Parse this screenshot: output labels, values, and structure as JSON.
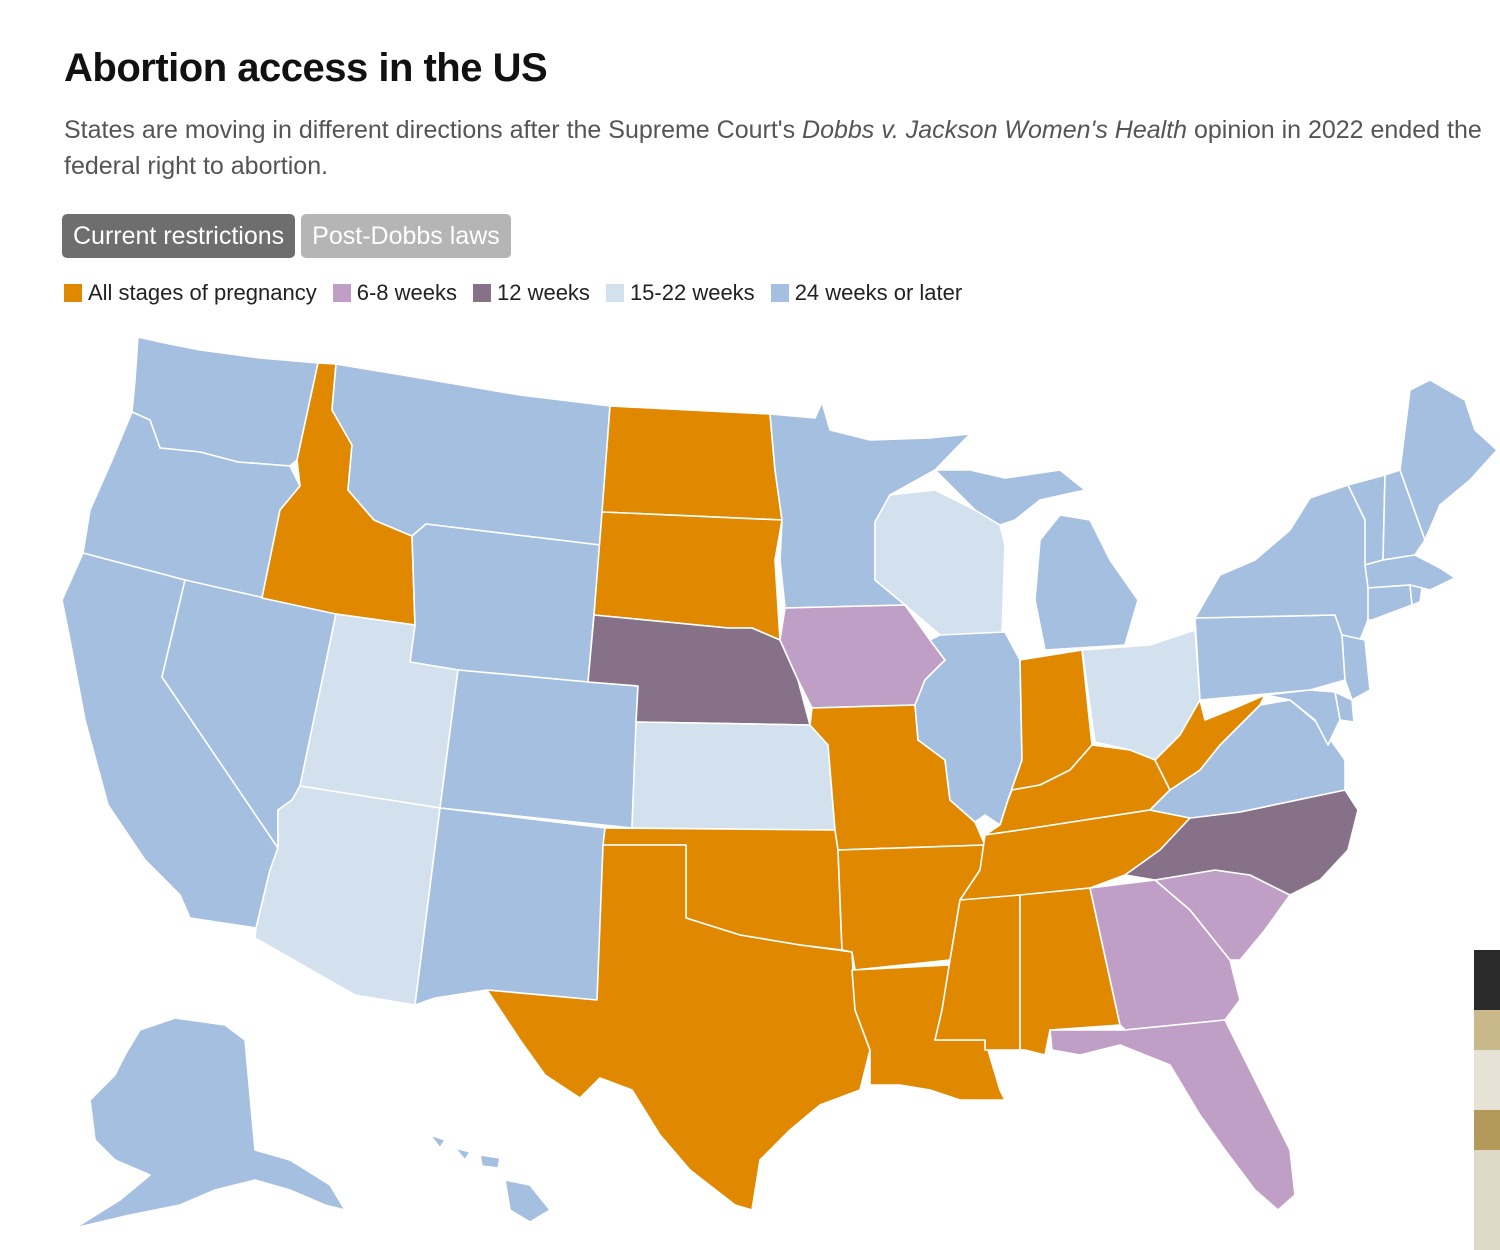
{
  "header": {
    "title": "Abortion access in the US",
    "subtitle_part1": "States are moving in different directions after the Supreme Court's ",
    "subtitle_italic": "Dobbs v. Jackson Women's Health",
    "subtitle_part2": " opinion in 2022 ended the federal right to abortion."
  },
  "tabs": [
    {
      "label": "Current restrictions",
      "active": true
    },
    {
      "label": "Post-Dobbs laws",
      "active": false
    }
  ],
  "legend": [
    {
      "key": "all",
      "label": "All stages of pregnancy",
      "color": "#e08900"
    },
    {
      "key": "w6",
      "label": "6-8 weeks",
      "color": "#c09fc7"
    },
    {
      "key": "w12",
      "label": "12 weeks",
      "color": "#877189"
    },
    {
      "key": "w15",
      "label": "15-22 weeks",
      "color": "#d3e0ee"
    },
    {
      "key": "w24",
      "label": "24 weeks or later",
      "color": "#a4bfdf"
    }
  ],
  "map": {
    "states": [
      {
        "id": "WA",
        "category": "w24"
      },
      {
        "id": "OR",
        "category": "w24"
      },
      {
        "id": "CA",
        "category": "w24"
      },
      {
        "id": "NV",
        "category": "w24"
      },
      {
        "id": "ID",
        "category": "all"
      },
      {
        "id": "MT",
        "category": "w24"
      },
      {
        "id": "WY",
        "category": "w24"
      },
      {
        "id": "UT",
        "category": "w15"
      },
      {
        "id": "AZ",
        "category": "w15"
      },
      {
        "id": "CO",
        "category": "w24"
      },
      {
        "id": "NM",
        "category": "w24"
      },
      {
        "id": "ND",
        "category": "all"
      },
      {
        "id": "SD",
        "category": "all"
      },
      {
        "id": "NE",
        "category": "w12"
      },
      {
        "id": "KS",
        "category": "w15"
      },
      {
        "id": "OK",
        "category": "all"
      },
      {
        "id": "TX",
        "category": "all"
      },
      {
        "id": "MN",
        "category": "w24"
      },
      {
        "id": "IA",
        "category": "w6"
      },
      {
        "id": "MO",
        "category": "all"
      },
      {
        "id": "AR",
        "category": "all"
      },
      {
        "id": "LA",
        "category": "all"
      },
      {
        "id": "WI",
        "category": "w15"
      },
      {
        "id": "IL",
        "category": "w24"
      },
      {
        "id": "MI",
        "category": "w24"
      },
      {
        "id": "IN",
        "category": "all"
      },
      {
        "id": "OH",
        "category": "w15"
      },
      {
        "id": "KY",
        "category": "all"
      },
      {
        "id": "TN",
        "category": "all"
      },
      {
        "id": "MS",
        "category": "all"
      },
      {
        "id": "AL",
        "category": "all"
      },
      {
        "id": "GA",
        "category": "w6"
      },
      {
        "id": "FL",
        "category": "w6"
      },
      {
        "id": "SC",
        "category": "w6"
      },
      {
        "id": "NC",
        "category": "w12"
      },
      {
        "id": "VA",
        "category": "w24"
      },
      {
        "id": "WV",
        "category": "all"
      },
      {
        "id": "PA",
        "category": "w24"
      },
      {
        "id": "NY",
        "category": "w24"
      },
      {
        "id": "NJ",
        "category": "w24"
      },
      {
        "id": "DE",
        "category": "w24"
      },
      {
        "id": "MD",
        "category": "w24"
      },
      {
        "id": "VT",
        "category": "w24"
      },
      {
        "id": "NH",
        "category": "w24"
      },
      {
        "id": "ME",
        "category": "w24"
      },
      {
        "id": "MA",
        "category": "w24"
      },
      {
        "id": "CT",
        "category": "w24"
      },
      {
        "id": "RI",
        "category": "w24"
      },
      {
        "id": "AK",
        "category": "w24"
      },
      {
        "id": "HI",
        "category": "w24"
      }
    ]
  }
}
